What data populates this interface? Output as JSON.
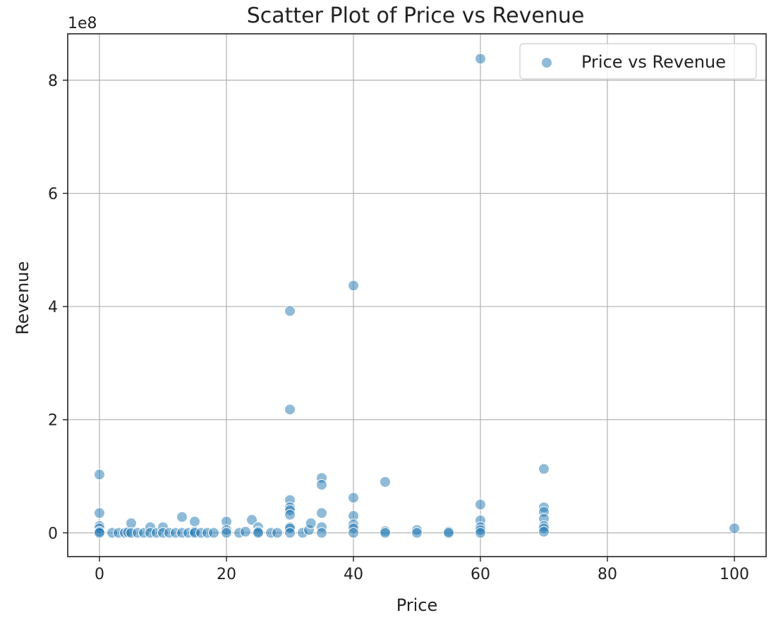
{
  "chart_data": {
    "type": "scatter",
    "title": "Scatter Plot of Price vs Revenue",
    "xlabel": "Price",
    "ylabel": "Revenue",
    "y_offset_text": "1e8",
    "xlim": [
      -5,
      105
    ],
    "ylim": [
      -0.42,
      8.82
    ],
    "y_unit_multiplier": 100000000,
    "x_ticks": [
      0,
      20,
      40,
      60,
      80,
      100
    ],
    "x_tick_labels": [
      "0",
      "20",
      "40",
      "60",
      "80",
      "100"
    ],
    "y_ticks": [
      0,
      2,
      4,
      6,
      8
    ],
    "y_tick_labels": [
      "0",
      "2",
      "4",
      "6",
      "8"
    ],
    "grid": true,
    "legend_position": "top-right",
    "marker_color": "#1f77b4",
    "series": [
      {
        "name": "Price vs Revenue",
        "points": [
          {
            "x": 0,
            "y": 1.03
          },
          {
            "x": 0,
            "y": 0.35
          },
          {
            "x": 0,
            "y": 0.12
          },
          {
            "x": 0,
            "y": 0.08
          },
          {
            "x": 0,
            "y": 0.02
          },
          {
            "x": 0,
            "y": 0.0
          },
          {
            "x": 2,
            "y": 0.0
          },
          {
            "x": 3,
            "y": 0.0
          },
          {
            "x": 4,
            "y": 0.0
          },
          {
            "x": 4.5,
            "y": 0.01
          },
          {
            "x": 5,
            "y": 0.17
          },
          {
            "x": 5,
            "y": 0.0
          },
          {
            "x": 6,
            "y": 0.0
          },
          {
            "x": 7,
            "y": 0.0
          },
          {
            "x": 8,
            "y": 0.1
          },
          {
            "x": 8,
            "y": 0.0
          },
          {
            "x": 9,
            "y": 0.0
          },
          {
            "x": 10,
            "y": 0.1
          },
          {
            "x": 10,
            "y": 0.0
          },
          {
            "x": 11,
            "y": 0.0
          },
          {
            "x": 12,
            "y": 0.0
          },
          {
            "x": 13,
            "y": 0.28
          },
          {
            "x": 13,
            "y": 0.0
          },
          {
            "x": 14,
            "y": 0.0
          },
          {
            "x": 15,
            "y": 0.2
          },
          {
            "x": 15,
            "y": 0.02
          },
          {
            "x": 15,
            "y": 0.0
          },
          {
            "x": 16,
            "y": 0.0
          },
          {
            "x": 17,
            "y": 0.0
          },
          {
            "x": 18,
            "y": 0.0
          },
          {
            "x": 20,
            "y": 0.2
          },
          {
            "x": 20,
            "y": 0.05
          },
          {
            "x": 20,
            "y": 0.0
          },
          {
            "x": 22,
            "y": 0.0
          },
          {
            "x": 23,
            "y": 0.02
          },
          {
            "x": 24,
            "y": 0.23
          },
          {
            "x": 25,
            "y": 0.1
          },
          {
            "x": 25,
            "y": 0.02
          },
          {
            "x": 25,
            "y": 0.0
          },
          {
            "x": 27,
            "y": 0.0
          },
          {
            "x": 28,
            "y": 0.0
          },
          {
            "x": 30,
            "y": 3.92
          },
          {
            "x": 30,
            "y": 2.18
          },
          {
            "x": 30,
            "y": 0.58
          },
          {
            "x": 30,
            "y": 0.45
          },
          {
            "x": 30,
            "y": 0.4
          },
          {
            "x": 30,
            "y": 0.32
          },
          {
            "x": 30,
            "y": 0.1
          },
          {
            "x": 30,
            "y": 0.08
          },
          {
            "x": 30,
            "y": 0.0
          },
          {
            "x": 32,
            "y": 0.0
          },
          {
            "x": 33,
            "y": 0.05
          },
          {
            "x": 33.3,
            "y": 0.17
          },
          {
            "x": 35,
            "y": 0.97
          },
          {
            "x": 35,
            "y": 0.85
          },
          {
            "x": 35,
            "y": 0.35
          },
          {
            "x": 35,
            "y": 0.1
          },
          {
            "x": 35,
            "y": 0.0
          },
          {
            "x": 40,
            "y": 4.37
          },
          {
            "x": 40,
            "y": 0.62
          },
          {
            "x": 40,
            "y": 0.3
          },
          {
            "x": 40,
            "y": 0.15
          },
          {
            "x": 40,
            "y": 0.08
          },
          {
            "x": 40,
            "y": 0.0
          },
          {
            "x": 45,
            "y": 0.9
          },
          {
            "x": 45,
            "y": 0.03
          },
          {
            "x": 45,
            "y": 0.0
          },
          {
            "x": 50,
            "y": 0.05
          },
          {
            "x": 50,
            "y": 0.0
          },
          {
            "x": 55,
            "y": 0.02
          },
          {
            "x": 55,
            "y": 0.0
          },
          {
            "x": 60,
            "y": 8.38
          },
          {
            "x": 60,
            "y": 0.5
          },
          {
            "x": 60,
            "y": 0.22
          },
          {
            "x": 60,
            "y": 0.1
          },
          {
            "x": 60,
            "y": 0.05
          },
          {
            "x": 60,
            "y": 0.0
          },
          {
            "x": 70,
            "y": 1.13
          },
          {
            "x": 70,
            "y": 0.45
          },
          {
            "x": 70,
            "y": 0.37
          },
          {
            "x": 70,
            "y": 0.25
          },
          {
            "x": 70,
            "y": 0.12
          },
          {
            "x": 70,
            "y": 0.08
          },
          {
            "x": 70,
            "y": 0.02
          },
          {
            "x": 100,
            "y": 0.08
          }
        ]
      }
    ]
  }
}
